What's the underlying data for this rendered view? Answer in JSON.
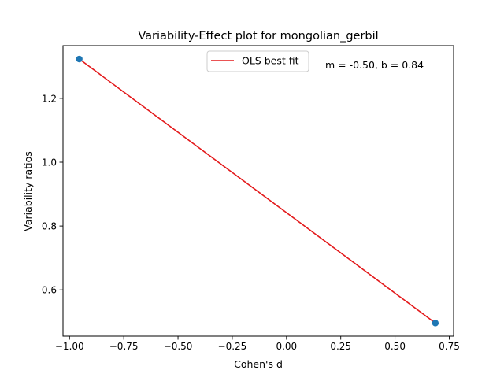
{
  "chart_data": {
    "type": "scatter",
    "title": "Variability-Effect plot for mongolian_gerbil",
    "xlabel": "Cohen's d",
    "ylabel": "Variability ratios",
    "xlim": [
      -1.03,
      0.77
    ],
    "ylim": [
      0.455,
      1.365
    ],
    "xticks": [
      -1.0,
      -0.75,
      -0.5,
      -0.25,
      0.0,
      0.25,
      0.5,
      0.75
    ],
    "xtick_labels": [
      "−1.00",
      "−0.75",
      "−0.50",
      "−0.25",
      "0.00",
      "0.25",
      "0.50",
      "0.75"
    ],
    "yticks": [
      0.6,
      0.8,
      1.0,
      1.2
    ],
    "ytick_labels": [
      "0.6",
      "0.8",
      "1.0",
      "1.2"
    ],
    "grid": false,
    "points": [
      {
        "x": -0.955,
        "y": 1.323
      },
      {
        "x": 0.686,
        "y": 0.496
      }
    ],
    "point_color": "#1f77b4",
    "fit_line": {
      "name": "OLS best fit",
      "color": "#e31a1c",
      "slope": -0.5,
      "intercept": 0.84
    },
    "legend": {
      "entries": [
        "OLS best fit"
      ],
      "placement": "top-center"
    },
    "annotation": "m = -0.50, b = 0.84"
  }
}
